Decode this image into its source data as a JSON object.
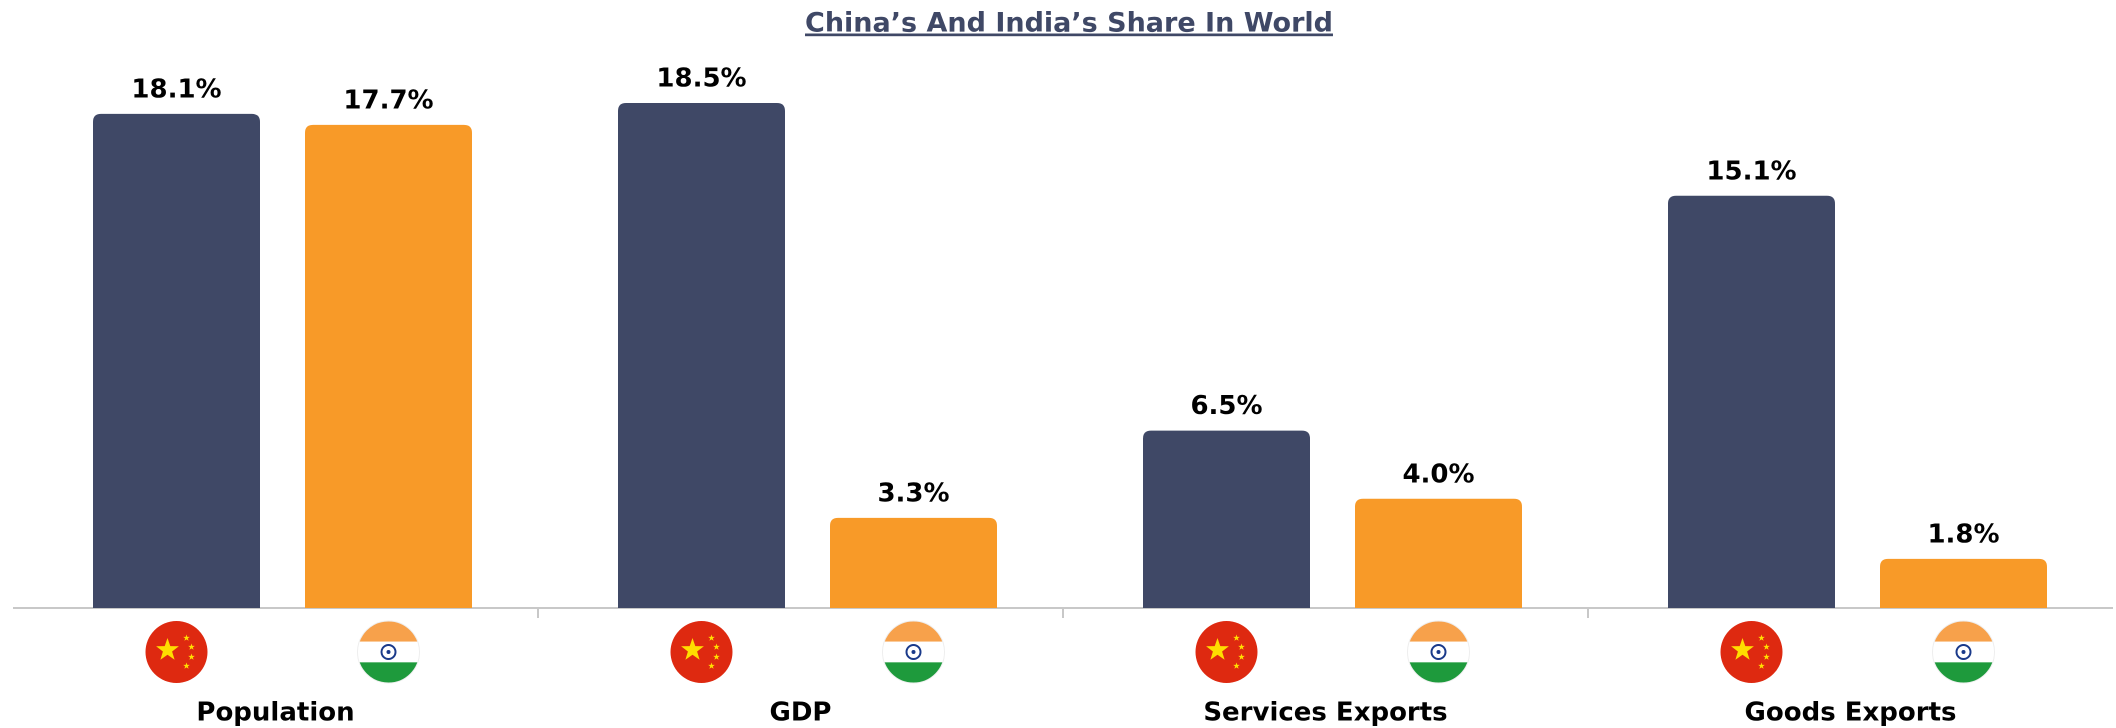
{
  "chart_data": {
    "type": "bar",
    "title": "China’s And India’s Share In World",
    "categories": [
      "Population",
      "GDP",
      "Services Exports",
      "Goods Exports"
    ],
    "series": [
      {
        "color": "#3f4866",
        "values": [
          18.1,
          18.5,
          6.5,
          15.1
        ],
        "value_labels": [
          "18.1%",
          "18.5%",
          "6.5%",
          "15.1%"
        ]
      },
      {
        "color": "#f89a28",
        "values": [
          17.7,
          3.3,
          4.0,
          1.8
        ],
        "value_labels": [
          "17.7%",
          "3.3%",
          "4.0%",
          "1.8%"
        ]
      }
    ]
  }
}
